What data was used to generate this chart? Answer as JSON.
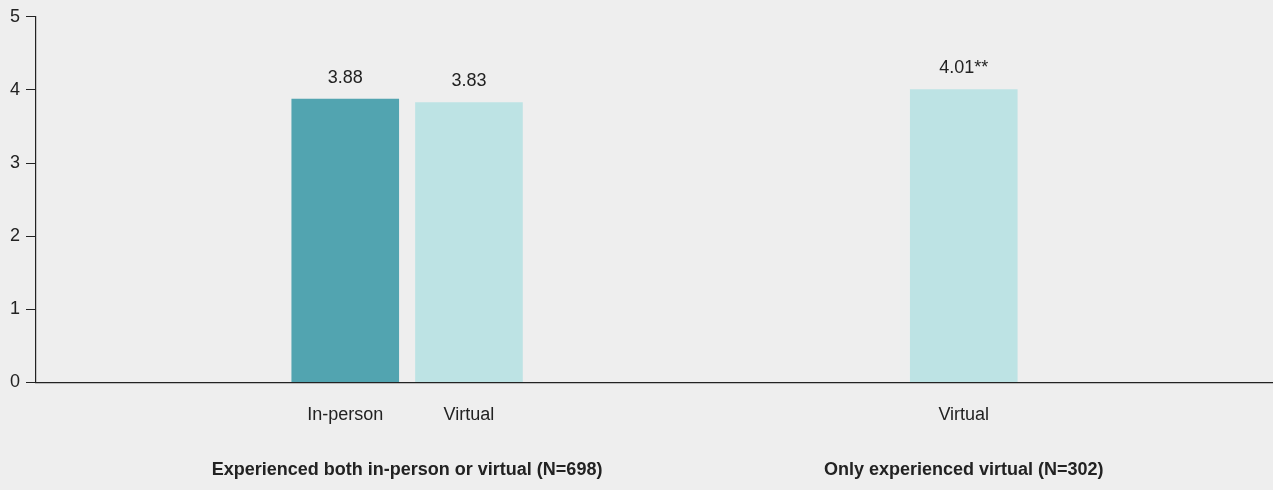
{
  "chart_data": {
    "type": "bar",
    "categories": [
      null,
      null,
      "In-person",
      "Virtual",
      null,
      null,
      null,
      "Virtual",
      null,
      null
    ],
    "values": [
      null,
      null,
      3.88,
      3.83,
      null,
      null,
      null,
      4.01,
      null,
      null
    ],
    "colors": [
      "#bde3e4",
      "#bde3e4",
      "#52a4b0",
      "#bde3e4",
      "#bde3e4",
      "#bde3e4",
      "#bde3e4",
      "#bde3e4",
      "#bde3e4",
      "#bde3e4"
    ],
    "value_labels": [
      null,
      null,
      "3.88",
      "3.83",
      null,
      null,
      null,
      "4.01**",
      null,
      null
    ],
    "ylim": [
      0,
      5
    ],
    "yticks": [
      0,
      1,
      2,
      3,
      4,
      5
    ],
    "annotations": [
      "Experienced both in-person or virtual (N=698)",
      "Only experienced virtual (N=302)"
    ],
    "legend": false
  }
}
